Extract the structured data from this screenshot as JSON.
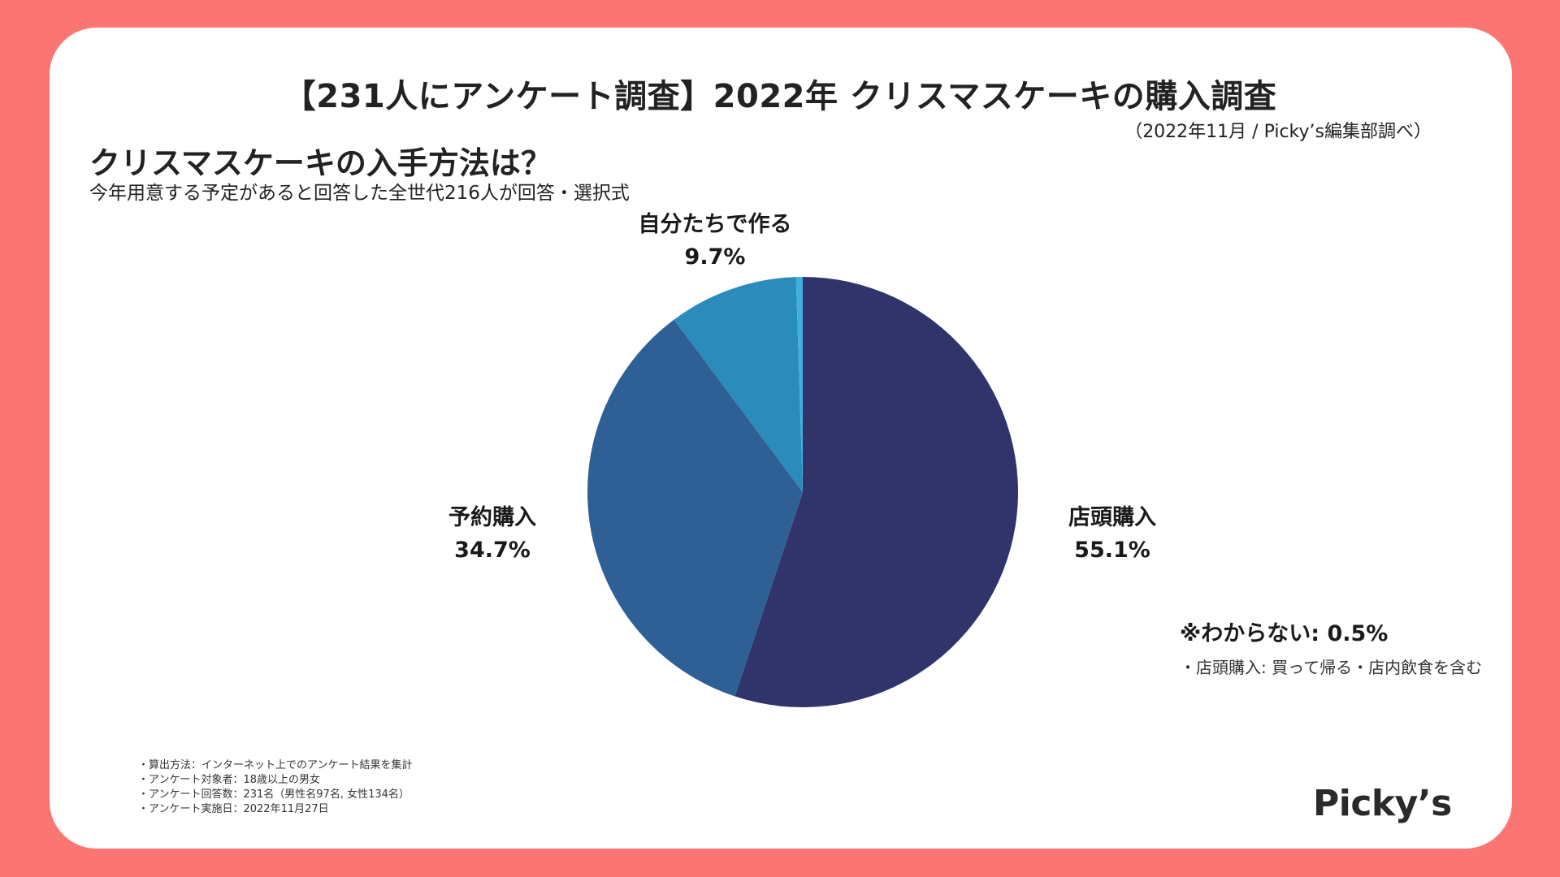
{
  "header": {
    "title": "【231人にアンケート調査】2022年 クリスマスケーキの購入調査",
    "source": "（2022年11月 / Picky’s編集部調べ）"
  },
  "question": {
    "title": "クリスマスケーキの入手方法は？",
    "subtitle": "今年用意する予定があると回答した全世代216人が回答・選択式"
  },
  "chart_data": {
    "type": "pie",
    "slices": [
      {
        "label": "店頭購入",
        "value": 55.1,
        "value_text": "55.1%",
        "color": "#30346b"
      },
      {
        "label": "予約購入",
        "value": 34.7,
        "value_text": "34.7%",
        "color": "#2e6096"
      },
      {
        "label": "自分たちで作る",
        "value": 9.7,
        "value_text": "9.7%",
        "color": "#2b8bba"
      },
      {
        "label": "わからない",
        "value": 0.5,
        "value_text": "0.5%",
        "color": "#3fb0de"
      }
    ],
    "start_angle_deg": 0,
    "direction": "clockwise"
  },
  "annotations": {
    "unknown": "※わからない: 0.5%",
    "note": "・店頭購入: 買って帰る・店内飲食を含む"
  },
  "method": [
    "・算出方法：インターネット上でのアンケート結果を集計",
    "・アンケート対象者：18歳以上の男女",
    "・アンケート回答数：231名（男性名97名, 女性134名）",
    "・アンケート実施日：2022年11月27日"
  ],
  "logo": {
    "text": "Picky’s"
  },
  "colors": {
    "background": "#fb7672",
    "card": "#ffffff"
  }
}
